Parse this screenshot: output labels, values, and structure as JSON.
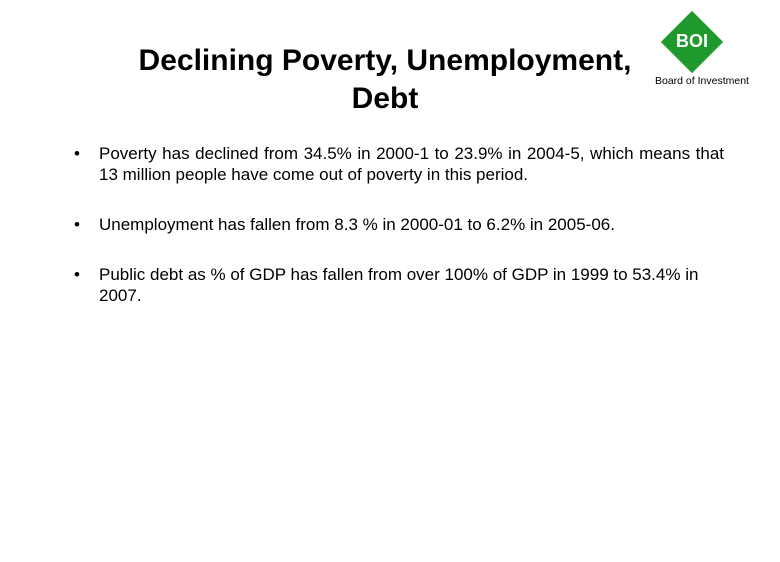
{
  "slide": {
    "title_line1": "Declining Poverty, Unemployment,",
    "title_line2": "Debt",
    "logo": {
      "mark": "BOI",
      "caption": "Board of Investment",
      "color": "#1e9a2c"
    },
    "bullet_symbol": "•",
    "bullets": [
      {
        "text": "Poverty has declined from 34.5% in 2000-1 to 23.9% in 2004-5, which means that 13 million people have come out of poverty in this period."
      },
      {
        "text": "Unemployment has fallen from 8.3 % in 2000-01 to 6.2% in 2005-06."
      },
      {
        "text": "Public debt as % of GDP has fallen from over 100% of GDP in 1999 to 53.4% in 2007."
      }
    ]
  }
}
